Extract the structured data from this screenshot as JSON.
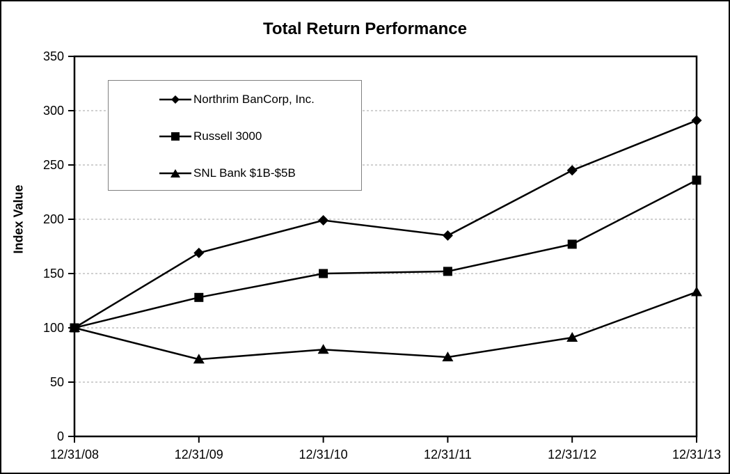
{
  "chart_data": {
    "type": "line",
    "title": "Total Return Performance",
    "xlabel": "",
    "ylabel": "Index Value",
    "categories": [
      "12/31/08",
      "12/31/09",
      "12/31/10",
      "12/31/11",
      "12/31/12",
      "12/31/13"
    ],
    "series": [
      {
        "name": "Northrim BanCorp, Inc.",
        "marker": "diamond",
        "values": [
          100,
          169,
          199,
          185,
          245,
          291
        ]
      },
      {
        "name": "Russell 3000",
        "marker": "square",
        "values": [
          100,
          128,
          150,
          152,
          177,
          236
        ]
      },
      {
        "name": "SNL Bank $1B-$5B",
        "marker": "triangle",
        "values": [
          100,
          71,
          80,
          73,
          91,
          133
        ]
      }
    ],
    "ylim": [
      0,
      350
    ],
    "yticks": [
      0,
      50,
      100,
      150,
      200,
      250,
      300,
      350
    ],
    "grid": "horizontal-dashed",
    "legend_position": "inside-upper-left",
    "line_color": "#000000",
    "grid_color": "#a0a0a0",
    "frame_color": "#000000",
    "background_color": "#ffffff"
  }
}
